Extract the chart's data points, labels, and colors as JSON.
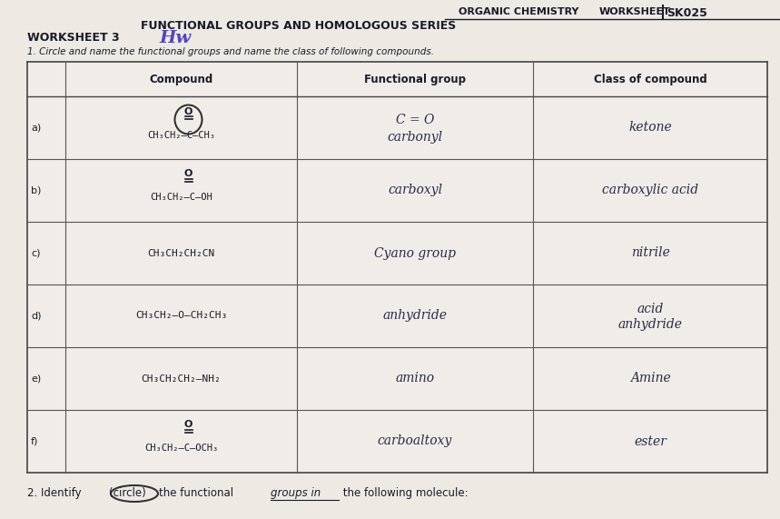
{
  "bg_color": "#e8e8e8",
  "table_bg": "#f5f4f0",
  "header_right1": "ORGANIC CHEMISTRY",
  "header_right2": "WORKSHEET",
  "header_code": "SK025",
  "title_left": "FUNCTIONAL GROUPS AND HOMOLOGOUS SERIES",
  "worksheet_label": "WORKSHEET 3",
  "question1": "1. Circle and name the functional groups and name the class of following compounds.",
  "col_headers": [
    "Compound",
    "Functional group",
    "Class of compound"
  ],
  "compound_strings": [
    "CH₃CH₂–C–CH₃",
    "CH₃CH₂–C–OH",
    "CH₃CH₂CH₂CN",
    "CH₃CH₂–O–CH₂CH₃",
    "CH₃CH₂CH₂–NH₂",
    "CH₃CH₂–C–OCH₃"
  ],
  "has_carbonyl": [
    true,
    true,
    false,
    false,
    false,
    true
  ],
  "labels": [
    "a)",
    "b)",
    "c)",
    "d)",
    "e)",
    "f)"
  ],
  "fg_texts": [
    "C = O\ncarbonyl",
    "carboxyl",
    "Cyano group",
    "anhydride",
    "amino",
    "carboaltoxy"
  ],
  "class_texts": [
    "ketone",
    "carboxylic acid",
    "nitrile",
    "acid\nanhydride",
    "Amine",
    "ester"
  ],
  "handwritten_color": "#2a2a4a",
  "printed_color": "#1a1a2a"
}
